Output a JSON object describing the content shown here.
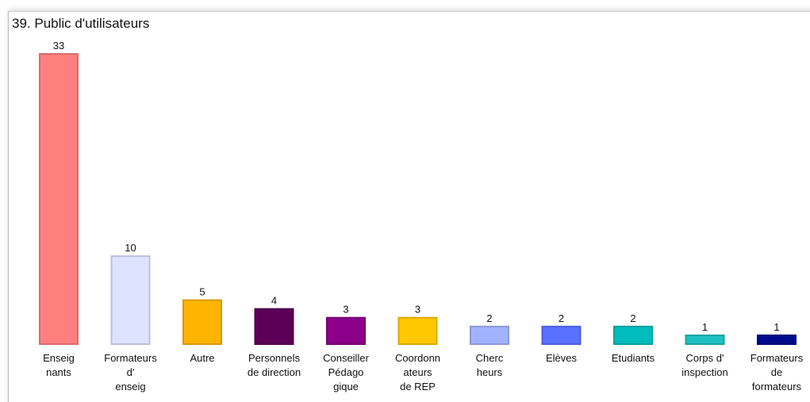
{
  "chart_data": {
    "type": "bar",
    "title": "39. Public d'utilisateurs",
    "categories": [
      "Enseig\nnants",
      "Formateurs\nd'\nenseig",
      "Autre",
      "Personnels\nde direction",
      "Conseiller\nPédago\ngique",
      "Coordonn\nateurs\nde REP",
      "Cherc\nheurs",
      "Elèves",
      "Etudiants",
      "Corps d'\ninspection",
      "Formateurs\nde\nformateurs"
    ],
    "values": [
      33,
      10,
      5,
      4,
      3,
      3,
      2,
      2,
      2,
      1,
      1
    ],
    "colors": [
      "#ff7f7f",
      "#dde2ff",
      "#ffb400",
      "#5c0057",
      "#8a0089",
      "#ffc800",
      "#a3b2ff",
      "#5a70ff",
      "#00bcbc",
      "#1fc0c0",
      "#000a8c"
    ]
  }
}
